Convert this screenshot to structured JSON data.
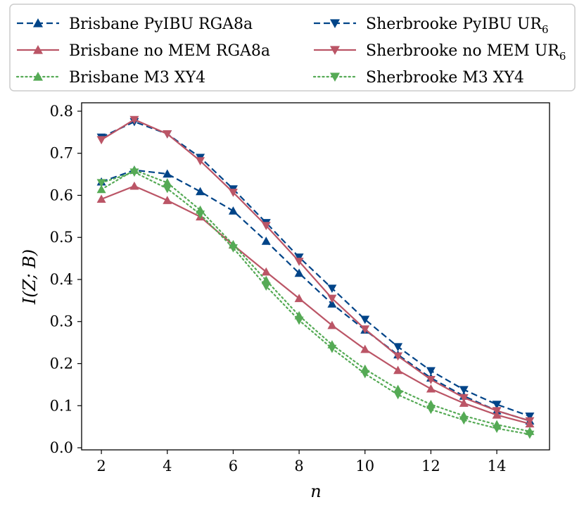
{
  "chart_data": {
    "type": "line",
    "title": "",
    "xlabel": "n",
    "ylabel": "I(Z; B)",
    "xlim": [
      1.4,
      15.6
    ],
    "ylim": [
      -0.005,
      0.82
    ],
    "xticks": [
      2,
      4,
      6,
      8,
      10,
      12,
      14
    ],
    "yticks": [
      0.0,
      0.1,
      0.2,
      0.3,
      0.4,
      0.5,
      0.6,
      0.7,
      0.8
    ],
    "xtick_labels": [
      "2",
      "4",
      "6",
      "8",
      "10",
      "12",
      "14"
    ],
    "ytick_labels": [
      "0.0",
      "0.1",
      "0.2",
      "0.3",
      "0.4",
      "0.5",
      "0.6",
      "0.7",
      "0.8"
    ],
    "grid": false,
    "legend_placement": "top (above plot, 2 columns)",
    "x": [
      2,
      3,
      4,
      5,
      6,
      7,
      8,
      9,
      10,
      11,
      12,
      13,
      14,
      15
    ],
    "series": [
      {
        "name": "Brisbane PyIBU RGA8a",
        "color": "#004488",
        "linestyle": "dashed",
        "marker": "triangle-up",
        "values": [
          0.632,
          0.66,
          0.651,
          0.609,
          0.563,
          0.491,
          0.415,
          0.342,
          0.28,
          0.221,
          0.166,
          0.123,
          0.088,
          0.064
        ]
      },
      {
        "name": "Brisbane no MEM RGA8a",
        "color": "#BB5566",
        "linestyle": "solid",
        "marker": "triangle-up",
        "values": [
          0.591,
          0.622,
          0.588,
          0.549,
          0.482,
          0.418,
          0.355,
          0.291,
          0.234,
          0.184,
          0.14,
          0.106,
          0.078,
          0.057
        ]
      },
      {
        "name": "Brisbane M3 XY4",
        "color": "#55AA55",
        "linestyle": "dotted",
        "marker": "triangle-up",
        "values": [
          0.614,
          0.66,
          0.63,
          0.565,
          0.483,
          0.398,
          0.314,
          0.245,
          0.187,
          0.139,
          0.103,
          0.076,
          0.055,
          0.039
        ]
      },
      {
        "name": "Sherbrooke PyIBU UR",
        "name_subscript": "6",
        "color": "#004488",
        "linestyle": "dashed",
        "marker": "triangle-down",
        "values": [
          0.738,
          0.775,
          0.746,
          0.69,
          0.615,
          0.535,
          0.453,
          0.379,
          0.305,
          0.24,
          0.183,
          0.138,
          0.103,
          0.075
        ]
      },
      {
        "name": "Sherbrooke no MEM UR",
        "name_subscript": "6",
        "color": "#BB5566",
        "linestyle": "solid",
        "marker": "triangle-down",
        "values": [
          0.732,
          0.78,
          0.746,
          0.682,
          0.607,
          0.528,
          0.443,
          0.355,
          0.282,
          0.218,
          0.162,
          0.119,
          0.088,
          0.064
        ]
      },
      {
        "name": "Sherbrooke M3 XY4",
        "color": "#55AA55",
        "linestyle": "dotted",
        "marker": "triangle-down",
        "values": [
          0.63,
          0.655,
          0.616,
          0.555,
          0.475,
          0.384,
          0.303,
          0.236,
          0.176,
          0.126,
          0.091,
          0.066,
          0.046,
          0.032
        ]
      }
    ]
  }
}
